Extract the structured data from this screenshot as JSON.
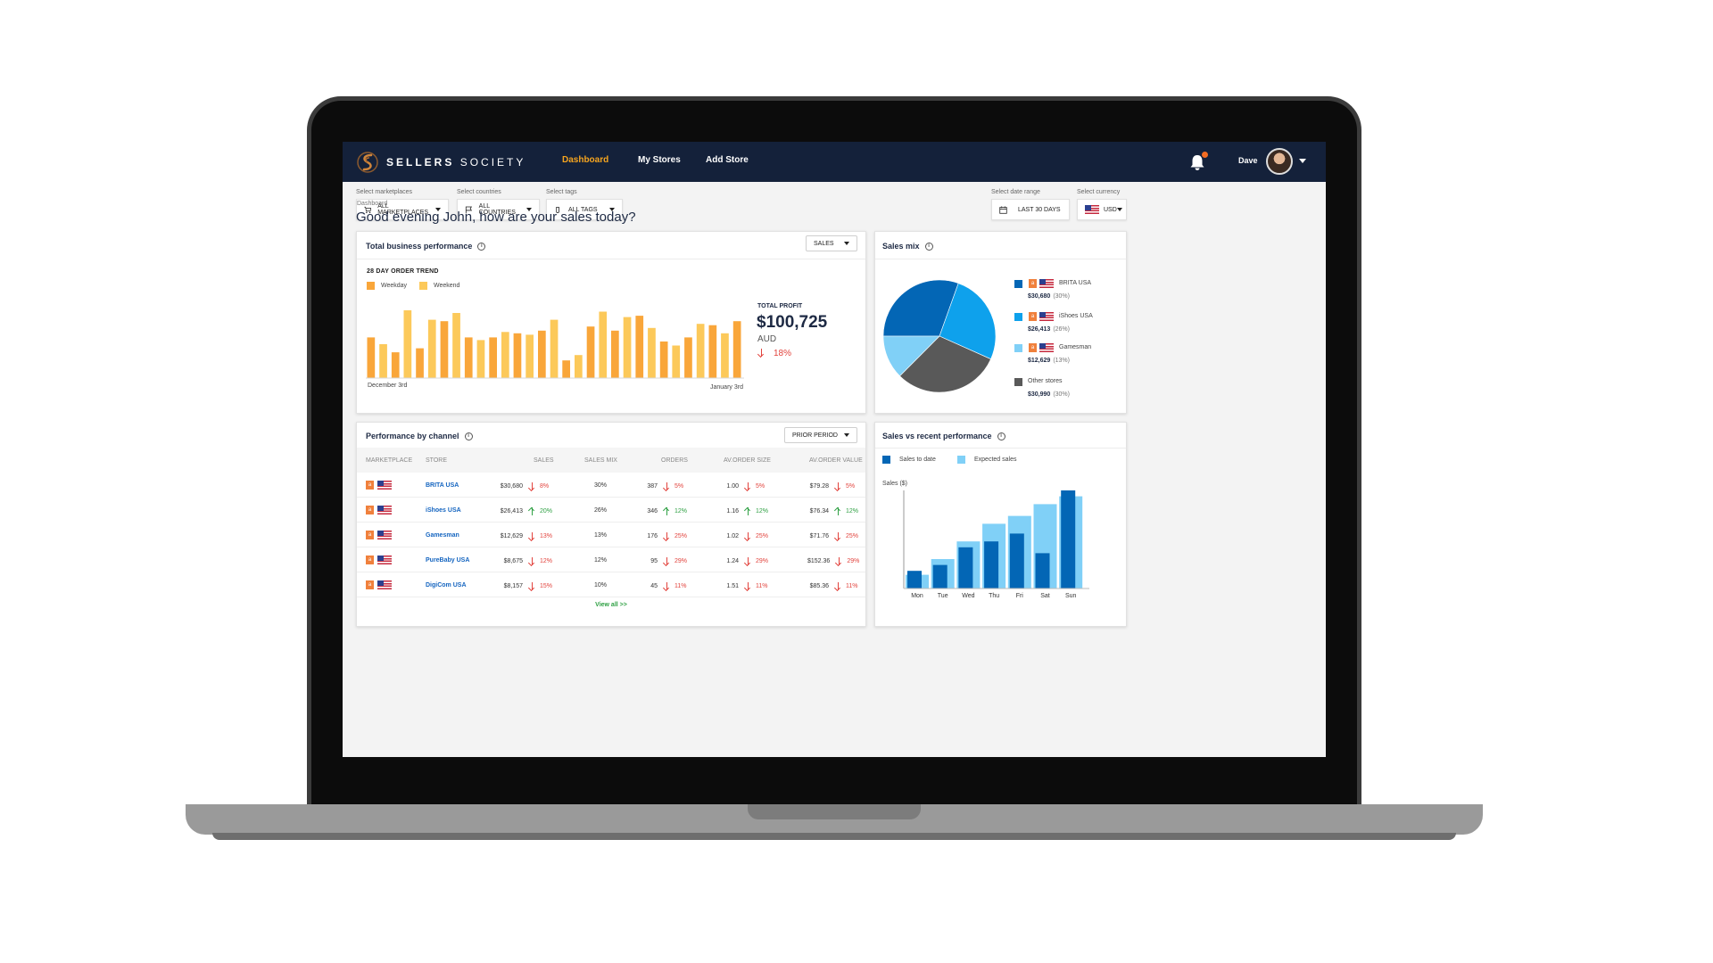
{
  "app": {
    "brand_bold": "SELLERS",
    "brand_light": "SOCIETY"
  },
  "nav": {
    "links": [
      "Dashboard",
      "My Stores",
      "Add Store"
    ],
    "active": "Dashboard"
  },
  "user": {
    "name": "Dave",
    "has_notification": true
  },
  "filters": {
    "marketplaces": {
      "label": "Select marketplaces",
      "value": "ALL MARKETPLACES",
      "icon": "cart-icon"
    },
    "countries": {
      "label": "Select countries",
      "value": "ALL COUNTRIES",
      "icon": "flag-icon"
    },
    "tags": {
      "label": "Select tags",
      "value": "ALL TAGS",
      "icon": "tag-icon"
    },
    "date_range": {
      "label": "Select date range",
      "value": "LAST 30 DAYS",
      "icon": "calendar-icon"
    },
    "currency": {
      "label": "Select currency",
      "value": "USD"
    }
  },
  "breadcrumb": "Dashboard",
  "greeting": "Good evening John, how are your sales today?",
  "colors": {
    "nav_bg": "#14213a",
    "accent": "#f6a51f",
    "weekday": "#f9a63a",
    "weekend": "#fcc95a",
    "dark_blue": "#0366b5",
    "mid_blue": "#0ea1ec",
    "light_blue": "#80d0f7",
    "grey": "#595959",
    "negative": "#e2433d",
    "positive": "#2ea043"
  },
  "business_performance": {
    "title": "Total business performance",
    "dropdown": "SALES",
    "trend_title": "28 DAY ORDER TREND",
    "legend": [
      "Weekday",
      "Weekend"
    ],
    "x_start": "December 3rd",
    "x_end": "January 3rd",
    "profit_label": "TOTAL PROFIT",
    "profit_value": "$100,725",
    "profit_currency": "AUD",
    "profit_change": "18%",
    "profit_direction": "down"
  },
  "sales_mix": {
    "title": "Sales mix",
    "stores": [
      {
        "name": "BRITA USA",
        "value": "$30,680",
        "pct": "(30%)"
      },
      {
        "name": "iShoes USA",
        "value": "$26,413",
        "pct": "(26%)"
      },
      {
        "name": "Gamesman",
        "value": "$12,629",
        "pct": "(13%)"
      },
      {
        "name": "Other stores",
        "value": "$30,990",
        "pct": "(30%)"
      }
    ]
  },
  "channel": {
    "title": "Performance by channel",
    "dropdown": "PRIOR PERIOD",
    "columns": [
      "MARKETPLACE",
      "STORE",
      "SALES",
      "SALES MIX",
      "ORDERS",
      "AV.ORDER SIZE",
      "AV.ORDER VALUE"
    ],
    "rows": [
      {
        "store": "BRITA USA",
        "sales": "$30,680",
        "sales_dir": "down",
        "sales_chg": "8%",
        "mix": "30%",
        "orders": "387",
        "orders_dir": "down",
        "orders_chg": "5%",
        "size": "1.00",
        "size_dir": "down",
        "size_chg": "5%",
        "value": "$79.28",
        "value_dir": "down",
        "value_chg": "5%"
      },
      {
        "store": "iShoes USA",
        "sales": "$26,413",
        "sales_dir": "up",
        "sales_chg": "20%",
        "mix": "26%",
        "orders": "346",
        "orders_dir": "up",
        "orders_chg": "12%",
        "size": "1.16",
        "size_dir": "up",
        "size_chg": "12%",
        "value": "$76.34",
        "value_dir": "up",
        "value_chg": "12%"
      },
      {
        "store": "Gamesman",
        "sales": "$12,629",
        "sales_dir": "down",
        "sales_chg": "13%",
        "mix": "13%",
        "orders": "176",
        "orders_dir": "down",
        "orders_chg": "25%",
        "size": "1.02",
        "size_dir": "down",
        "size_chg": "25%",
        "value": "$71.76",
        "value_dir": "down",
        "value_chg": "25%"
      },
      {
        "store": "PureBaby USA",
        "sales": "$8,675",
        "sales_dir": "down",
        "sales_chg": "12%",
        "mix": "12%",
        "orders": "95",
        "orders_dir": "down",
        "orders_chg": "29%",
        "size": "1.24",
        "size_dir": "down",
        "size_chg": "29%",
        "value": "$152.36",
        "value_dir": "down",
        "value_chg": "29%"
      },
      {
        "store": "DigiCom USA",
        "sales": "$8,157",
        "sales_dir": "down",
        "sales_chg": "15%",
        "mix": "10%",
        "orders": "45",
        "orders_dir": "down",
        "orders_chg": "11%",
        "size": "1.51",
        "size_dir": "down",
        "size_chg": "11%",
        "value": "$85.36",
        "value_dir": "down",
        "value_chg": "11%"
      }
    ],
    "view_all": "View all >>"
  },
  "recent_performance": {
    "title": "Sales vs recent performance",
    "legend": [
      "Sales to date",
      "Expected sales"
    ]
  },
  "chart_data": [
    {
      "type": "bar",
      "title": "28 DAY ORDER TREND",
      "series_names": [
        "Weekday",
        "Weekend"
      ],
      "values": [
        60,
        50,
        38,
        100,
        44,
        86,
        84,
        96,
        60,
        56,
        60,
        68,
        66,
        64,
        70,
        86,
        26,
        34,
        76,
        98,
        70,
        90,
        92,
        74,
        54,
        48,
        60,
        80,
        78,
        66,
        84
      ],
      "is_weekend": [
        0,
        1,
        0,
        1,
        0,
        1,
        0,
        1,
        0,
        1,
        0,
        1,
        0,
        1,
        0,
        1,
        0,
        1,
        0,
        1,
        0,
        1,
        0,
        1,
        0,
        1,
        0,
        1,
        0,
        1,
        0
      ],
      "xlabel_start": "December 3rd",
      "xlabel_end": "January 3rd",
      "ylim": [
        0,
        100
      ],
      "grid": false
    },
    {
      "type": "pie",
      "title": "Sales mix",
      "labels": [
        "BRITA USA",
        "iShoes USA",
        "Gamesman",
        "Other stores"
      ],
      "values": [
        30680,
        26413,
        12629,
        30990
      ],
      "colors": [
        "#0366b5",
        "#0ea1ec",
        "#80d0f7",
        "#595959"
      ]
    },
    {
      "type": "bar",
      "title": "Sales vs recent performance",
      "categories": [
        "Mon",
        "Tue",
        "Wed",
        "Thu",
        "Fri",
        "Sat",
        "Sun"
      ],
      "series": [
        {
          "name": "Sales to date",
          "values": [
            18,
            24,
            42,
            48,
            56,
            36,
            100
          ]
        },
        {
          "name": "Expected sales",
          "values": [
            14,
            30,
            48,
            66,
            74,
            86,
            94
          ]
        }
      ],
      "ylabel": "Sales ($)",
      "ylim": [
        0,
        100
      ],
      "grid": false
    }
  ]
}
